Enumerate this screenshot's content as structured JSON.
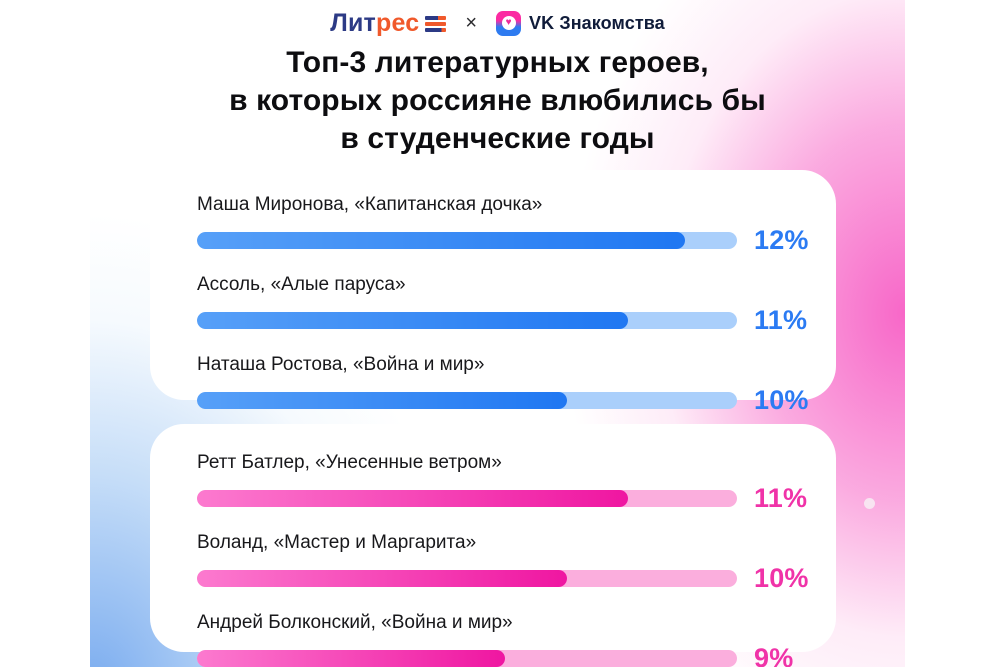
{
  "header": {
    "litres_part1": "Лит",
    "litres_part2": "рес",
    "separator": "×",
    "vk_name": "VK Знакомства"
  },
  "title": {
    "line1": "Топ-3 литературных героев,",
    "line2": "в которых россияне влюбились бы",
    "line3": "в студенческие годы"
  },
  "colors": {
    "blue_accent": "#2B7BF3",
    "blue_track": "#AACFFB",
    "pink_accent": "#F033A8",
    "pink_track": "#FBAEDD",
    "litres_navy": "#2C3A85",
    "litres_orange": "#F0592B",
    "bg_pink": "#F76FC6",
    "bg_blue": "#71A6EE"
  },
  "chart_data": {
    "type": "bar",
    "unit": "%",
    "orientation": "horizontal",
    "groups": [
      {
        "name": "blue-card-heroines",
        "accent": "#2B7BF3",
        "items": [
          {
            "label": "Маша Миронова, «Капитанская дочка»",
            "value": 12,
            "display": "12%",
            "fill_pct": 90.4
          },
          {
            "label": "Ассоль, «Алые паруса»",
            "value": 11,
            "display": "11%",
            "fill_pct": 79.8
          },
          {
            "label": "Наташа Ростова, «Война и мир»",
            "value": 10,
            "display": "10%",
            "fill_pct": 68.5
          }
        ]
      },
      {
        "name": "pink-card-heroes",
        "accent": "#F033A8",
        "items": [
          {
            "label": "Ретт Батлер, «Унесенные ветром»",
            "value": 11,
            "display": "11%",
            "fill_pct": 79.8
          },
          {
            "label": "Воланд, «Мастер и Маргарита»",
            "value": 10,
            "display": "10%",
            "fill_pct": 68.5
          },
          {
            "label": "Андрей Болконский, «Война и мир»",
            "value": 9,
            "display": "9%",
            "fill_pct": 57.0
          }
        ]
      }
    ]
  }
}
